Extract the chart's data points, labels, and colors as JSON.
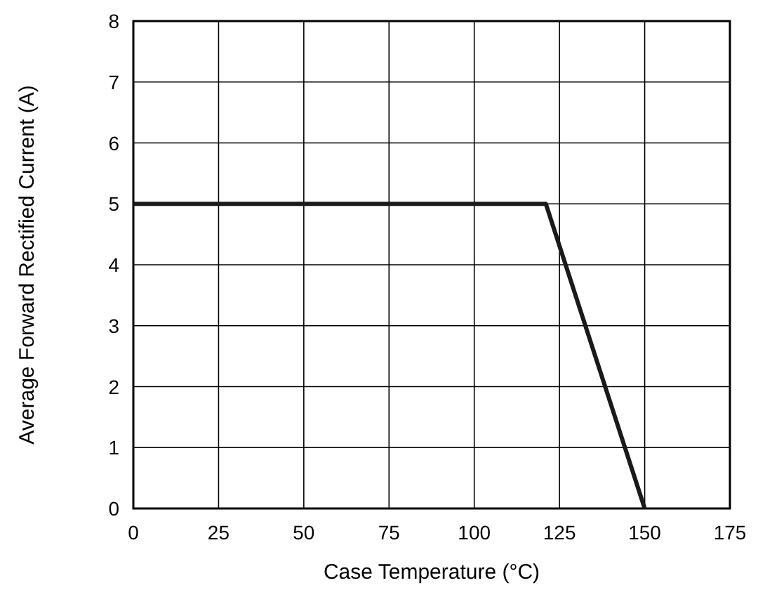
{
  "chart_data": {
    "type": "line",
    "xlabel": "Case Temperature (°C)",
    "ylabel": "Average Forward Rectified Current (A)",
    "series": [
      {
        "color": "#1a1a1a",
        "x": [
          0,
          121,
          150
        ],
        "values": [
          5,
          5,
          0
        ]
      }
    ],
    "xlim": [
      0,
      175
    ],
    "xticks": [
      0,
      25,
      50,
      75,
      100,
      125,
      150,
      175
    ],
    "ylim": [
      0,
      8
    ],
    "yticks": [
      0,
      1,
      2,
      3,
      4,
      5,
      6,
      7,
      8
    ],
    "grid": true,
    "marker": "none",
    "line_style": "solid"
  }
}
